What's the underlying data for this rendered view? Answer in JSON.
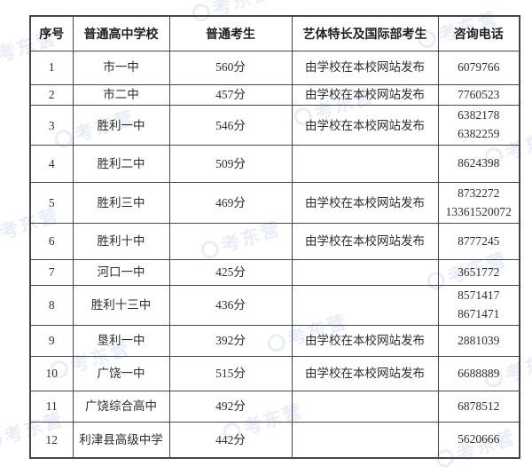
{
  "watermark": {
    "text": "考东营"
  },
  "colors": {
    "border": "#474747",
    "text": "#2e2e2e",
    "watermark_blue": "rgba(110,145,215,0.16)",
    "background": "#ffffff"
  },
  "table": {
    "headers": [
      "序号",
      "普通高中学校",
      "普通考生",
      "艺体特长及国际部考生",
      "咨询电话"
    ],
    "rows": [
      {
        "no": "1",
        "school": "市一中",
        "score": "560分",
        "art": "由学校在本校网站发布",
        "phones": [
          "6079766"
        ]
      },
      {
        "no": "2",
        "school": "市二中",
        "score": "457分",
        "art": "由学校在本校网站发布",
        "phones": [
          "7760523"
        ]
      },
      {
        "no": "3",
        "school": "胜利一中",
        "score": "546分",
        "art": "由学校在本校网站发布",
        "phones": [
          "6382178",
          "6382259"
        ]
      },
      {
        "no": "4",
        "school": "胜利二中",
        "score": "509分",
        "art": "",
        "phones": [
          "8624398"
        ]
      },
      {
        "no": "5",
        "school": "胜利三中",
        "score": "469分",
        "art": "由学校在本校网站发布",
        "phones": [
          "8732272",
          "13361520072"
        ]
      },
      {
        "no": "6",
        "school": "胜利十中",
        "score": "",
        "art": "由学校在本校网站发布",
        "phones": [
          "8777245"
        ]
      },
      {
        "no": "7",
        "school": "河口一中",
        "score": "425分",
        "art": "",
        "phones": [
          "3651772"
        ]
      },
      {
        "no": "8",
        "school": "胜利十三中",
        "score": "436分",
        "art": "",
        "phones": [
          "8571417",
          "8671471"
        ]
      },
      {
        "no": "9",
        "school": "垦利一中",
        "score": "392分",
        "art": "由学校在本校网站发布",
        "phones": [
          "2881039"
        ]
      },
      {
        "no": "10",
        "school": "广饶一中",
        "score": "515分",
        "art": "由学校在本校网站发布",
        "phones": [
          "6688889"
        ]
      },
      {
        "no": "11",
        "school": "广饶综合高中",
        "score": "492分",
        "art": "",
        "phones": [
          "6878512"
        ]
      },
      {
        "no": "12",
        "school": "利津县高级中学",
        "score": "442分",
        "art": "",
        "phones": [
          "5620666"
        ]
      }
    ]
  }
}
